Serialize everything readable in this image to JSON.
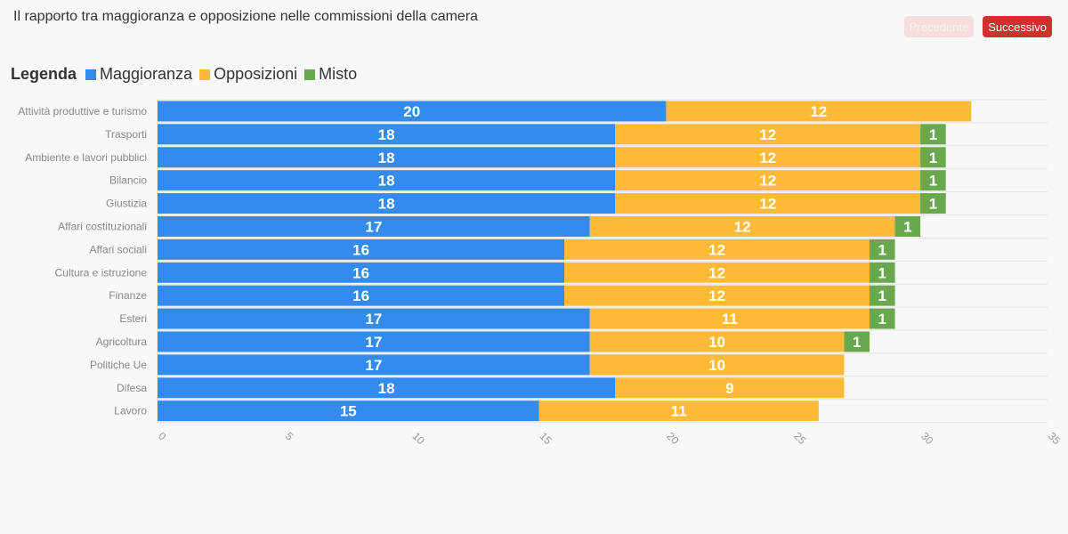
{
  "header": {
    "title": "Il rapporto tra maggioranza e opposizione nelle commissioni della camera",
    "prev_label": "Precedente",
    "next_label": "Successivo"
  },
  "legend": {
    "title": "Legenda"
  },
  "colors": {
    "maggioranza": "#338bed",
    "opposizioni": "#ffbb38",
    "misto": "#6aa84f",
    "grid": "#e4e4e4",
    "axis_text": "#999999"
  },
  "chart_data": {
    "type": "bar",
    "orientation": "horizontal",
    "stacked": true,
    "title": "Il rapporto tra maggioranza e opposizione nelle commissioni della camera",
    "categories": [
      "Attività produttive e turismo",
      "Trasporti",
      "Ambiente e lavori pubblici",
      "Bilancio",
      "Giustizia",
      "Affari costituzionali",
      "Affari sociali",
      "Cultura e istruzione",
      "Finanze",
      "Esteri",
      "Agricoltura",
      "Politiche Ue",
      "Difesa",
      "Lavoro"
    ],
    "series": [
      {
        "name": "Maggioranza",
        "color": "#338bed",
        "values": [
          20,
          18,
          18,
          18,
          18,
          17,
          16,
          16,
          16,
          17,
          17,
          17,
          18,
          15
        ]
      },
      {
        "name": "Opposizioni",
        "color": "#ffbb38",
        "values": [
          12,
          12,
          12,
          12,
          12,
          12,
          12,
          12,
          12,
          11,
          10,
          10,
          9,
          11
        ]
      },
      {
        "name": "Misto",
        "color": "#6aa84f",
        "values": [
          0,
          1,
          1,
          1,
          1,
          1,
          1,
          1,
          1,
          1,
          1,
          0,
          0,
          0
        ]
      }
    ],
    "xlim": [
      0,
      35
    ],
    "xticks": [
      0,
      5,
      10,
      15,
      20,
      25,
      30,
      35
    ],
    "grid": true,
    "legend_position": "top-left"
  }
}
